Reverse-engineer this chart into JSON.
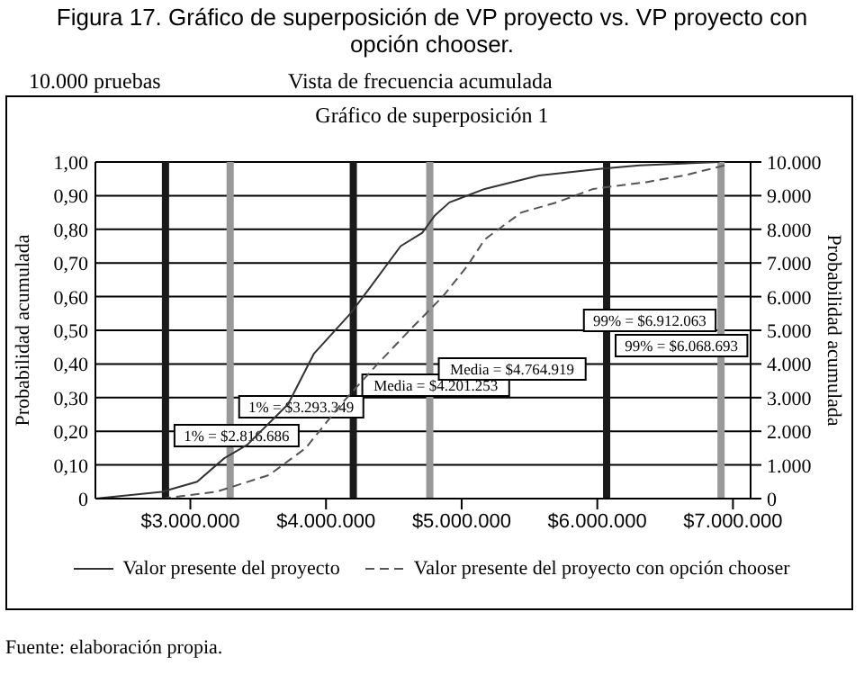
{
  "chart_data": {
    "type": "line",
    "title": "Figura 17. Gráfico de superposición de VP proyecto vs. VP proyecto con opción chooser.",
    "subtitle": "Vista de frecuencia acumulada",
    "ylabel": "Probabilidad acumulada",
    "y2label": "Probabilidad acumulada",
    "annotations": [
      "10.000 pruebas",
      "Gráfico de superposición 1",
      "Fuente: elaboración propia."
    ],
    "series": [
      {
        "name": "Valor presente del proyecto",
        "color": "#333333",
        "line_style": "solid",
        "x": [
          2300000,
          2790000,
          3050000,
          3250000,
          3420000,
          3720000,
          3910000,
          4180000,
          4330000,
          4550000,
          4710000,
          4800000,
          4910000,
          5170000,
          5570000,
          6030000,
          6310000,
          6900000
        ],
        "values": [
          0,
          0.02,
          0.05,
          0.12,
          0.16,
          0.28,
          0.43,
          0.55,
          0.63,
          0.75,
          0.79,
          0.84,
          0.88,
          0.92,
          0.96,
          0.98,
          0.99,
          1.0
        ]
      },
      {
        "name": "Valor presente del proyecto con opción chooser",
        "color": "#555555",
        "line_style": "dashed",
        "x": [
          2790000,
          3190000,
          3580000,
          3850000,
          4110000,
          4380000,
          4640000,
          4860000,
          5040000,
          5170000,
          5440000,
          5700000,
          5970000,
          6360000,
          6640000,
          6940000
        ],
        "values": [
          0,
          0.02,
          0.07,
          0.15,
          0.28,
          0.4,
          0.51,
          0.6,
          0.69,
          0.77,
          0.85,
          0.88,
          0.92,
          0.94,
          0.96,
          0.99
        ]
      }
    ],
    "xlim": [
      2300000,
      7130000
    ],
    "xticks": [
      {
        "value": 3000000,
        "label": "$3.000.000"
      },
      {
        "value": 4000000,
        "label": "$4.000.000"
      },
      {
        "value": 5000000,
        "label": "$5.000.000"
      },
      {
        "value": 6000000,
        "label": "$6.000.000"
      },
      {
        "value": 7000000,
        "label": "$7.000.000"
      }
    ],
    "ylim": [
      0,
      1
    ],
    "yticks": [
      0,
      {
        "value": 0.1,
        "label": "0,10"
      },
      {
        "value": 0.2,
        "label": "0,20"
      },
      {
        "value": 0.3,
        "label": "0,30"
      },
      {
        "value": 0.4,
        "label": "0,40"
      },
      {
        "value": 0.5,
        "label": "0,50"
      },
      {
        "value": 0.6,
        "label": "0,60"
      },
      {
        "value": 0.7,
        "label": "0,70"
      },
      {
        "value": 0.8,
        "label": "0,80"
      },
      {
        "value": 0.9,
        "label": "0,90"
      },
      {
        "value": 1,
        "label": "1,00"
      }
    ],
    "y2lim": [
      0,
      10000
    ],
    "y2ticks": [
      0,
      {
        "value": 1000,
        "label": "1.000"
      },
      {
        "value": 2000,
        "label": "2.000"
      },
      {
        "value": 3000,
        "label": "3.000"
      },
      {
        "value": 4000,
        "label": "4.000"
      },
      {
        "value": 5000,
        "label": "5.000"
      },
      {
        "value": 6000,
        "label": "6.000"
      },
      {
        "value": 7000,
        "label": "7.000"
      },
      {
        "value": 8000,
        "label": "8.000"
      },
      {
        "value": 9000,
        "label": "9.000"
      },
      {
        "value": 10000,
        "label": "10.000"
      }
    ],
    "ref_lines": [
      {
        "axis": "x",
        "value": 2816686,
        "label": "1% = $2.816.686",
        "color": "#1a1a1a"
      },
      {
        "axis": "x",
        "value": 3293349,
        "label": "1% = $3.293.349",
        "color": "#999999"
      },
      {
        "axis": "x",
        "value": 4201253,
        "label": "Media = $4.201.253",
        "color": "#1a1a1a"
      },
      {
        "axis": "x",
        "value": 4764919,
        "label": "Media = $4.764.919",
        "color": "#999999"
      },
      {
        "axis": "x",
        "value": 6068693,
        "label": "99% = $6.068.693",
        "color": "#1a1a1a"
      },
      {
        "axis": "x",
        "value": 6912063,
        "label": "99% = $6.912.063",
        "color": "#999999"
      }
    ],
    "grid": "y",
    "legend": "bottom",
    "marker": "none"
  }
}
